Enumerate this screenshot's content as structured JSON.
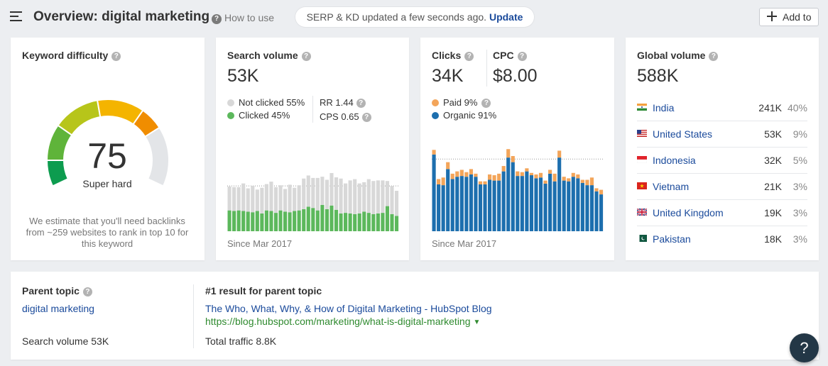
{
  "header": {
    "title": "Overview: digital marketing",
    "help_label": "How to use",
    "notice_text": "SERP & KD updated a few seconds ago.",
    "notice_action": "Update",
    "add_label": "Add to"
  },
  "kd": {
    "title": "Keyword difficulty",
    "score": "75",
    "score_value": 75,
    "label": "Super hard",
    "note": "We estimate that you'll need backlinks from ~259 websites to rank in top 10 for this keyword",
    "colors": {
      "segment_1": "#0d9c4f",
      "segment_2": "#5fb43a",
      "segment_3": "#b7c51a",
      "segment_4": "#f4b400",
      "segment_5": "#f08d00",
      "track": "#e3e5e8"
    }
  },
  "search_volume": {
    "title": "Search volume",
    "value": "53K",
    "legend": [
      {
        "label": "Not clicked 55%",
        "color": "#d8d8d8"
      },
      {
        "label": "Clicked 45%",
        "color": "#5cb85c"
      }
    ],
    "rr_label": "RR 1.44",
    "cps_label": "CPS 0.65",
    "since": "Since Mar 2017"
  },
  "clicks": {
    "title": "Clicks",
    "value": "34K",
    "cpc_title": "CPC",
    "cpc_value": "$8.00",
    "legend": [
      {
        "label": "Paid 9%",
        "color": "#f3a55a"
      },
      {
        "label": "Organic 91%",
        "color": "#1d6fae"
      }
    ],
    "since": "Since Mar 2017"
  },
  "global_volume": {
    "title": "Global volume",
    "value": "588K",
    "countries": [
      {
        "name": "India",
        "volume": "241K",
        "share": "40%",
        "flag": "india-flag-icon"
      },
      {
        "name": "United States",
        "volume": "53K",
        "share": "9%",
        "flag": "us-flag-icon"
      },
      {
        "name": "Indonesia",
        "volume": "32K",
        "share": "5%",
        "flag": "indonesia-flag-icon"
      },
      {
        "name": "Vietnam",
        "volume": "21K",
        "share": "3%",
        "flag": "vietnam-flag-icon"
      },
      {
        "name": "United Kingdom",
        "volume": "19K",
        "share": "3%",
        "flag": "uk-flag-icon"
      },
      {
        "name": "Pakistan",
        "volume": "18K",
        "share": "3%",
        "flag": "pakistan-flag-icon"
      }
    ]
  },
  "parent_topic": {
    "title": "Parent topic",
    "topic": "digital marketing",
    "search_volume": "Search volume 53K",
    "result_title": "#1 result for parent topic",
    "result_link": "The Who, What, Why, & How of Digital Marketing - HubSpot Blog",
    "result_url": "https://blog.hubspot.com/marketing/what-is-digital-marketing",
    "total_traffic": "Total traffic 8.8K"
  },
  "help_fab": "?",
  "chart_data": [
    {
      "type": "bar",
      "name": "search-volume-history",
      "stacked": true,
      "series": [
        {
          "name": "Clicked",
          "color": "#5cb85c",
          "values": [
            0.34,
            0.33,
            0.34,
            0.33,
            0.32,
            0.31,
            0.33,
            0.29,
            0.34,
            0.33,
            0.3,
            0.34,
            0.32,
            0.31,
            0.33,
            0.34,
            0.36,
            0.4,
            0.38,
            0.34,
            0.43,
            0.36,
            0.42,
            0.35,
            0.29,
            0.3,
            0.29,
            0.28,
            0.29,
            0.32,
            0.3,
            0.28,
            0.29,
            0.3,
            0.41,
            0.28,
            0.25
          ]
        },
        {
          "name": "Not clicked",
          "color": "#d8d8d8",
          "values": [
            0.39,
            0.39,
            0.38,
            0.45,
            0.38,
            0.43,
            0.35,
            0.42,
            0.43,
            0.48,
            0.42,
            0.41,
            0.37,
            0.45,
            0.38,
            0.41,
            0.5,
            0.51,
            0.49,
            0.53,
            0.46,
            0.48,
            0.53,
            0.53,
            0.57,
            0.48,
            0.54,
            0.57,
            0.49,
            0.48,
            0.55,
            0.54,
            0.54,
            0.53,
            0.41,
            0.46,
            0.41
          ]
        }
      ]
    },
    {
      "type": "bar",
      "name": "clicks-history",
      "stacked": true,
      "series": [
        {
          "name": "Organic",
          "color": "#1d6fae",
          "values": [
            1.0,
            0.61,
            0.6,
            0.81,
            0.68,
            0.71,
            0.72,
            0.71,
            0.74,
            0.71,
            0.61,
            0.61,
            0.67,
            0.66,
            0.66,
            0.78,
            0.96,
            0.9,
            0.72,
            0.72,
            0.78,
            0.73,
            0.69,
            0.7,
            0.62,
            0.75,
            0.65,
            0.96,
            0.66,
            0.65,
            0.71,
            0.69,
            0.63,
            0.6,
            0.6,
            0.52,
            0.48
          ]
        },
        {
          "name": "Paid",
          "color": "#f3a55a",
          "values": [
            0.06,
            0.07,
            0.1,
            0.09,
            0.07,
            0.07,
            0.08,
            0.06,
            0.07,
            0.04,
            0.04,
            0.04,
            0.07,
            0.07,
            0.09,
            0.07,
            0.11,
            0.08,
            0.06,
            0.05,
            0.04,
            0.03,
            0.05,
            0.06,
            0.04,
            0.05,
            0.1,
            0.09,
            0.05,
            0.04,
            0.05,
            0.05,
            0.04,
            0.07,
            0.1,
            0.04,
            0.06
          ]
        }
      ]
    }
  ]
}
